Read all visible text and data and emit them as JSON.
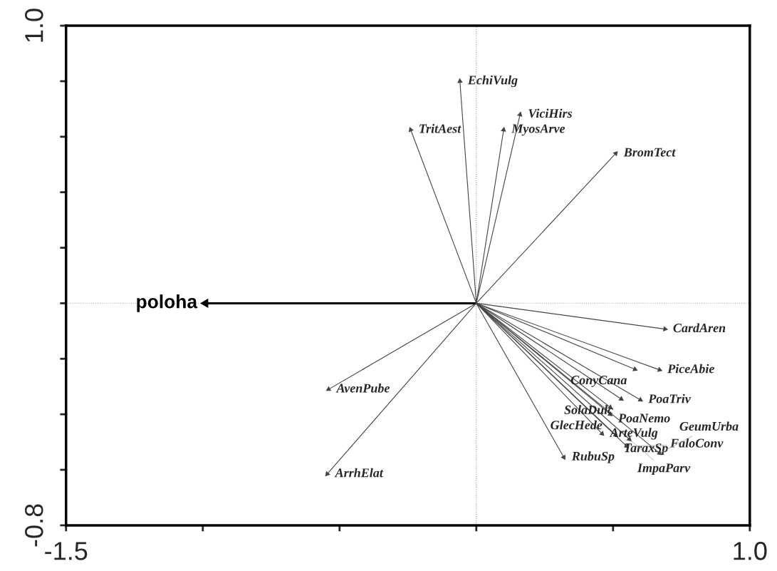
{
  "chart_data": {
    "type": "scatter",
    "xlim": [
      -1.5,
      1.0
    ],
    "xticks": [
      {
        "value": -1.5,
        "label": "-1.5"
      },
      {
        "value": -1.0,
        "label": null
      },
      {
        "value": -0.5,
        "label": null
      },
      {
        "value": 0,
        "label": null
      },
      {
        "value": 0.5,
        "label": null
      },
      {
        "value": 1.0,
        "label": "1.0"
      }
    ],
    "ylim": [
      -0.8,
      1.0
    ],
    "yticks": [
      {
        "value": -0.8,
        "label": "-0.8"
      },
      {
        "value": -0.6,
        "label": null
      },
      {
        "value": -0.4,
        "label": null
      },
      {
        "value": -0.2,
        "label": null
      },
      {
        "value": 0,
        "label": null
      },
      {
        "value": 0.2,
        "label": null
      },
      {
        "value": 0.4,
        "label": null
      },
      {
        "value": 0.6,
        "label": null
      },
      {
        "value": 0.8,
        "label": null
      },
      {
        "value": 1.0,
        "label": "1.0"
      }
    ],
    "grid": false,
    "marker": "triangle",
    "ref_lines": [
      {
        "axis": "x",
        "value": 0,
        "color": "#999999",
        "line_style": "dotted"
      },
      {
        "axis": "y",
        "value": 0,
        "color": "#bbbbbb",
        "line_style": "dotted"
      }
    ],
    "series": [
      {
        "name": "poloha",
        "color": "#000000",
        "x": [
          -0.99
        ],
        "values": [
          0
        ]
      },
      {
        "color": "#444444",
        "x": [
          -0.06,
          -0.24,
          0.1,
          0.16,
          0.51,
          -0.54,
          -0.545,
          0.32,
          0.69,
          0.67,
          0.58,
          0.6,
          0.53,
          0.49,
          0.49,
          0.46,
          0.51,
          0.56,
          0.55,
          0.67
        ],
        "values": [
          0.8,
          0.625,
          0.625,
          0.68,
          0.54,
          -0.31,
          -0.615,
          -0.555,
          -0.093,
          -0.24,
          -0.238,
          -0.348,
          -0.345,
          -0.375,
          -0.4,
          -0.47,
          -0.475,
          -0.49,
          -0.515,
          -0.54
        ]
      }
    ],
    "annotations": [
      {
        "text": "EchiVulg",
        "x": -0.06,
        "y": 0.8
      },
      {
        "text": "TritAest",
        "x": -0.24,
        "y": 0.625
      },
      {
        "text": "MyosArve",
        "x": 0.1,
        "y": 0.625
      },
      {
        "text": "ViciHirs",
        "x": 0.16,
        "y": 0.68
      },
      {
        "text": "BromTect",
        "x": 0.51,
        "y": 0.54
      },
      {
        "text": "AvenPube",
        "x": -0.54,
        "y": -0.31
      },
      {
        "text": "ArrhElat",
        "x": -0.545,
        "y": -0.615
      },
      {
        "text": "RubuSp",
        "x": 0.32,
        "y": -0.555
      },
      {
        "text": "CardAren",
        "x": 0.69,
        "y": -0.093
      },
      {
        "text": "PiceAbie",
        "x": 0.67,
        "y": -0.24
      },
      {
        "text": "ConyCana",
        "x": 0.58,
        "y": -0.238
      },
      {
        "text": "PoaTriv",
        "x": 0.6,
        "y": -0.348
      },
      {
        "text": "SolaDulc",
        "x": 0.53,
        "y": -0.345
      },
      {
        "text": "PoaNemo",
        "x": 0.49,
        "y": -0.375
      },
      {
        "text": "GlecHede",
        "x": 0.49,
        "y": -0.4
      },
      {
        "text": "ArteVulg",
        "x": 0.46,
        "y": -0.47
      },
      {
        "text": "TaraxSp",
        "x": 0.51,
        "y": -0.475
      },
      {
        "text": "ImpaParv",
        "x": 0.56,
        "y": -0.49
      },
      {
        "text": "FaloConv",
        "x": 0.55,
        "y": -0.515
      },
      {
        "text": "GeumUrba",
        "x": 0.67,
        "y": -0.54
      }
    ]
  }
}
